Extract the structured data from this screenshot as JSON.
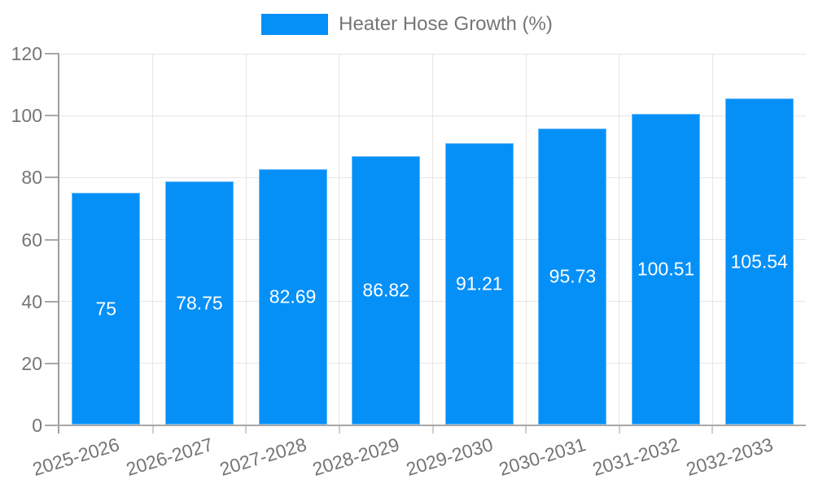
{
  "chart_data": {
    "type": "bar",
    "legend_label": "Heater Hose Growth (%)",
    "legend_position": "top-center",
    "categories": [
      "2025-2026",
      "2026-2027",
      "2027-2028",
      "2028-2029",
      "2029-2030",
      "2030-2031",
      "2031-2032",
      "2032-2033"
    ],
    "values": [
      75,
      78.75,
      82.69,
      86.82,
      91.21,
      95.73,
      100.51,
      105.54
    ],
    "bar_labels": [
      "75",
      "78.75",
      "82.69",
      "86.82",
      "91.21",
      "95.73",
      "100.51",
      "105.54"
    ],
    "title": "",
    "xlabel": "",
    "ylabel": "",
    "ylim": [
      0,
      120
    ],
    "ytick_step": 20,
    "yticks": [
      0,
      20,
      40,
      60,
      80,
      100,
      120
    ],
    "grid": true,
    "colors": {
      "bar": "#0590F8",
      "bar_value_text": "#ffffff",
      "axis_text": "#757575",
      "axis_line": "#9e9e9e",
      "gridline": "#e6e6e6"
    }
  }
}
